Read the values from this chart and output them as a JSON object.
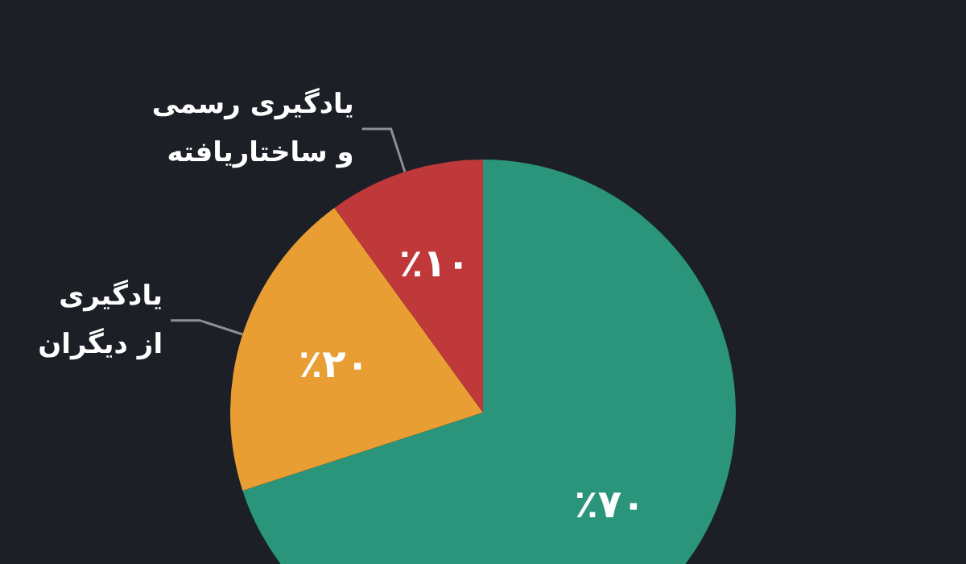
{
  "chart_data": {
    "type": "pie",
    "categories": [
      null,
      "یادگیری از دیگران",
      "یادگیری رسمی و ساختاریافته"
    ],
    "values": [
      70,
      20,
      10
    ],
    "colors": [
      "#2a957a",
      "#e89e32",
      "#c0393a"
    ],
    "value_labels": [
      "٪۷۰",
      "٪۲۰",
      "٪۱۰"
    ],
    "legend": false
  }
}
